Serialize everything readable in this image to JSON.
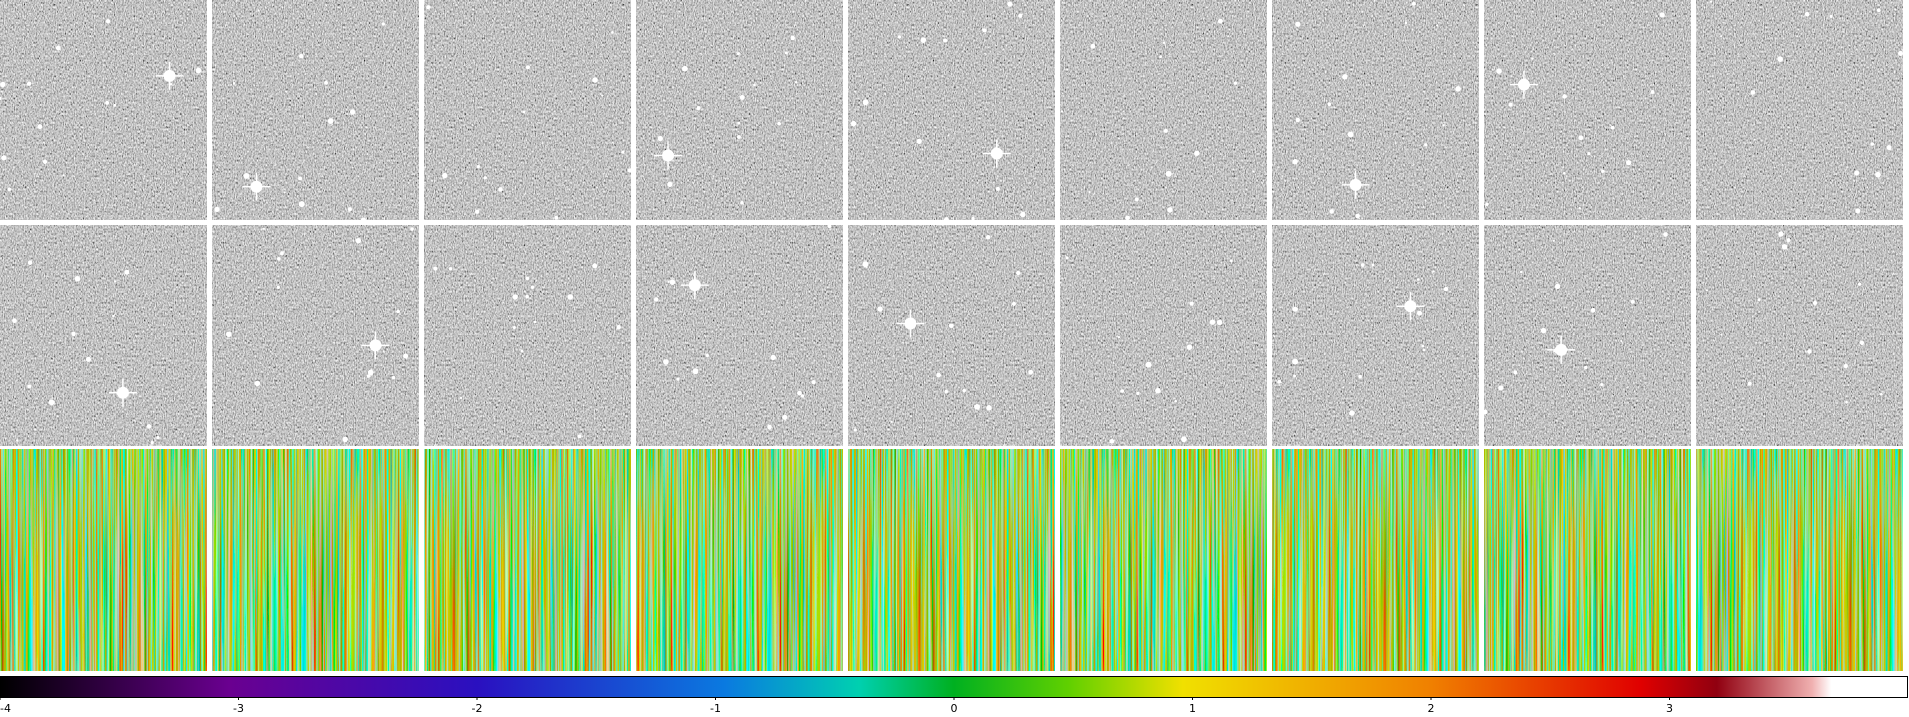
{
  "colorbar": {
    "range": [
      -4,
      4
    ],
    "ticks": [
      -4,
      -3,
      -2,
      -1,
      0,
      1,
      2,
      3
    ]
  }
}
